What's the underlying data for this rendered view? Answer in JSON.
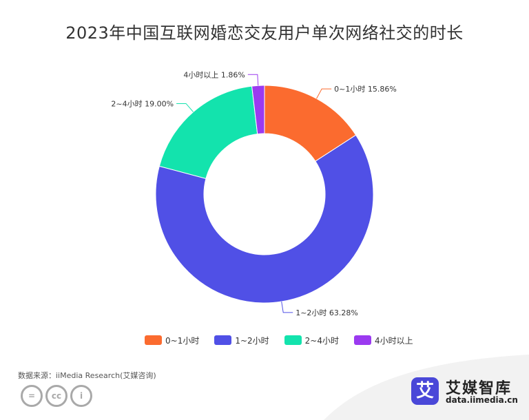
{
  "title": "2023年中国互联网婚恋交友用户单次网络社交的时长",
  "chart_data": {
    "type": "pie",
    "subtype": "donut",
    "categories": [
      "0~1小时",
      "1~2小时",
      "2~4小时",
      "4小时以上"
    ],
    "values": [
      15.86,
      63.28,
      19.0,
      1.86
    ],
    "data_labels": [
      "0~1小时 15.86%",
      "1~2小时 63.28%",
      "2~4小时 19.00%",
      "4小时以上 1.86%"
    ],
    "colors": [
      "#fb6b2f",
      "#5050e6",
      "#13e3ad",
      "#9b3af0"
    ],
    "legend_position": "bottom"
  },
  "source": "数据来源：iiMedia Research(艾媒咨询)",
  "license_icons": [
    "equals-icon",
    "cc-icon",
    "person-icon"
  ],
  "license_glyphs": [
    "=",
    "cc",
    "i"
  ],
  "brand": {
    "logo_char": "艾",
    "name": "艾媒智库",
    "url": "data.iimedia.cn",
    "color": "#4a48d8"
  }
}
